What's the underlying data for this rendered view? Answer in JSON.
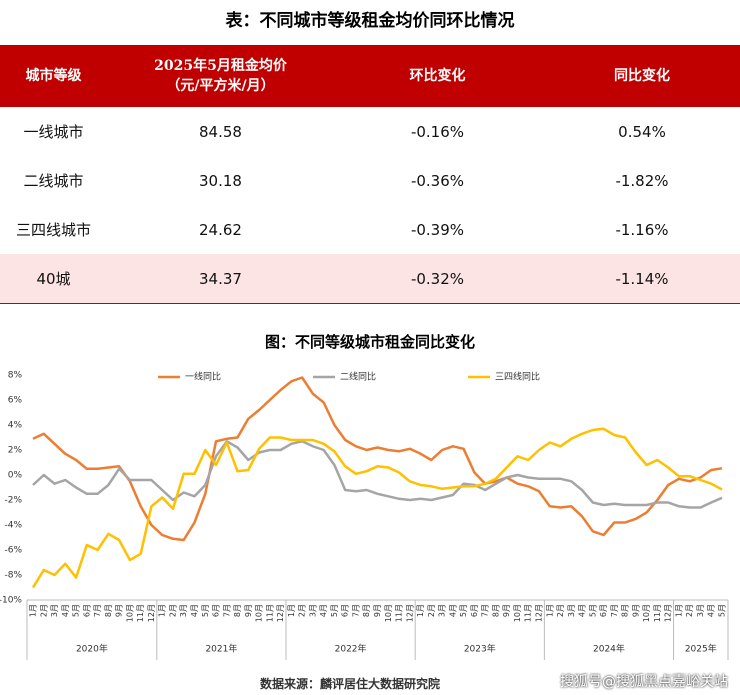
{
  "table": {
    "title": "表：不同城市等级租金均价同环比情况",
    "header": [
      "城市等级",
      [
        "2025年5月租金均价",
        "（元/平方米/月）"
      ],
      "环比变化",
      "同比变化"
    ],
    "rows": [
      [
        "一线城市",
        "84.58",
        "-0.16%",
        "0.54%"
      ],
      [
        "二线城市",
        "30.18",
        "-0.36%",
        "-1.82%"
      ],
      [
        "三四线城市",
        "24.62",
        "-0.39%",
        "-1.16%"
      ],
      [
        "40城",
        "34.37",
        "-0.32%",
        "-1.14%"
      ]
    ]
  },
  "chart_data": {
    "type": "line",
    "title": "图：不同等级城市租金同比变化",
    "categories": [
      "1月",
      "2月",
      "3月",
      "4月",
      "5月",
      "6月",
      "7月",
      "8月",
      "9月",
      "10月",
      "11月",
      "12月",
      "1月",
      "2月",
      "3月",
      "4月",
      "5月",
      "6月",
      "7月",
      "8月",
      "9月",
      "10月",
      "11月",
      "12月",
      "1月",
      "2月",
      "3月",
      "4月",
      "5月",
      "6月",
      "7月",
      "8月",
      "9月",
      "10月",
      "11月",
      "12月",
      "1月",
      "2月",
      "3月",
      "4月",
      "5月",
      "6月",
      "7月",
      "8月",
      "9月",
      "10月",
      "11月",
      "12月",
      "1月",
      "2月",
      "3月",
      "4月",
      "5月",
      "6月",
      "7月",
      "8月",
      "9月",
      "10月",
      "11月",
      "12月",
      "1月",
      "2月",
      "3月",
      "4月",
      "5月"
    ],
    "year_groups": [
      "2020年",
      "2021年",
      "2022年",
      "2023年",
      "2024年",
      "2025年"
    ],
    "series": [
      {
        "name": "一线同比",
        "color": "#ed7d31",
        "values": [
          2.9,
          3.3,
          2.5,
          1.7,
          1.2,
          0.5,
          0.5,
          0.6,
          0.7,
          -0.5,
          -2.5,
          -4.0,
          -4.8,
          -5.1,
          -5.2,
          -3.8,
          -1.5,
          2.7,
          2.9,
          3.0,
          4.5,
          5.2,
          6.0,
          6.8,
          7.5,
          7.8,
          6.5,
          5.8,
          4.0,
          2.8,
          2.3,
          2.0,
          2.2,
          2.0,
          1.9,
          2.1,
          1.7,
          1.2,
          2.0,
          2.3,
          2.1,
          0.2,
          -0.7,
          -0.5,
          -0.2,
          -0.7,
          -0.9,
          -1.3,
          -2.5,
          -2.6,
          -2.5,
          -3.3,
          -4.5,
          -4.8,
          -3.8,
          -3.8,
          -3.5,
          -3.0,
          -2.0,
          -0.8,
          -0.3,
          -0.5,
          -0.2,
          0.4,
          0.54
        ]
      },
      {
        "name": "二线同比",
        "color": "#a5a5a5",
        "values": [
          -0.8,
          0.0,
          -0.7,
          -0.4,
          -1.0,
          -1.5,
          -1.5,
          -0.8,
          0.5,
          -0.4,
          -0.4,
          -0.4,
          -1.2,
          -2.0,
          -1.4,
          -1.7,
          -0.8,
          1.5,
          2.7,
          2.2,
          1.2,
          1.8,
          2.0,
          2.0,
          2.5,
          2.7,
          2.3,
          2.0,
          0.8,
          -1.2,
          -1.3,
          -1.2,
          -1.5,
          -1.7,
          -1.9,
          -2.0,
          -1.9,
          -2.0,
          -1.8,
          -1.6,
          -0.7,
          -0.8,
          -1.2,
          -0.7,
          -0.2,
          0.0,
          -0.2,
          -0.3,
          -0.3,
          -0.3,
          -0.5,
          -1.2,
          -2.2,
          -2.4,
          -2.3,
          -2.4,
          -2.4,
          -2.4,
          -2.2,
          -2.2,
          -2.5,
          -2.6,
          -2.6,
          -2.2,
          -1.82
        ]
      },
      {
        "name": "三四线同比",
        "color": "#ffc000",
        "values": [
          -9.0,
          -7.6,
          -8.0,
          -7.1,
          -8.2,
          -5.6,
          -6.0,
          -4.7,
          -5.2,
          -6.8,
          -6.3,
          -2.5,
          -1.8,
          -2.7,
          0.1,
          0.1,
          2.0,
          0.8,
          2.6,
          0.3,
          0.4,
          2.1,
          3.0,
          3.0,
          2.8,
          2.8,
          2.8,
          2.5,
          1.9,
          0.7,
          0.1,
          0.3,
          0.7,
          0.6,
          0.2,
          -0.5,
          -0.8,
          -0.9,
          -1.1,
          -1.0,
          -0.9,
          -0.9,
          -0.7,
          -0.3,
          0.6,
          1.5,
          1.2,
          2.0,
          2.6,
          2.3,
          2.9,
          3.3,
          3.6,
          3.7,
          3.2,
          3.0,
          1.8,
          0.8,
          1.2,
          0.6,
          -0.1,
          -0.1,
          -0.4,
          -0.7,
          -1.16
        ]
      }
    ],
    "ylim": [
      -10,
      8
    ],
    "yticks": [
      {
        "value": -10,
        "label": "-10%"
      },
      {
        "value": -8,
        "label": "-8%"
      },
      {
        "value": -6,
        "label": "-6%"
      },
      {
        "value": -4,
        "label": "-4%"
      },
      {
        "value": -2,
        "label": "-2%"
      },
      {
        "value": 0,
        "label": "0%"
      },
      {
        "value": 2,
        "label": "2%"
      },
      {
        "value": 4,
        "label": "4%"
      },
      {
        "value": 6,
        "label": "6%"
      },
      {
        "value": 8,
        "label": "8%"
      }
    ],
    "grid": false,
    "legend": "top"
  },
  "source": "数据来源：麟评居住大数据研究院",
  "watermark": "搜狐号@搜狐黑点嘉峪关站"
}
